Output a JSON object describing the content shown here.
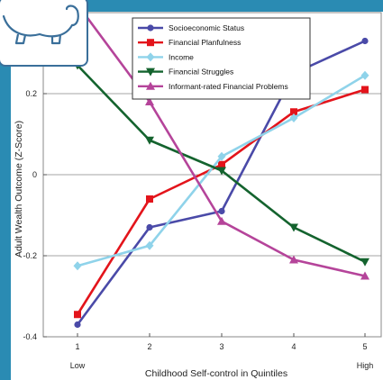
{
  "chart_data": {
    "type": "line",
    "xlabel": "Childhood Self-control in Quintiles",
    "ylabel": "Adult Wealth Outcome (Z-Score)",
    "x": [
      1,
      2,
      3,
      4,
      5
    ],
    "x_tick_labels": [
      "1",
      "2",
      "3",
      "4",
      "5"
    ],
    "x_end_labels": {
      "low": "Low",
      "high": "High"
    },
    "ylim": [
      -0.4,
      0.4
    ],
    "y_ticks": [
      -0.4,
      -0.2,
      0,
      0.2
    ],
    "y_tick_labels": [
      "-0.4",
      "-0.2",
      "0",
      "0.2"
    ],
    "grid": "horizontal",
    "legend_position": "top-right",
    "series": [
      {
        "name": "Socioeconomic Status",
        "color": "#4a4aa8",
        "marker": "circle",
        "values": [
          -0.37,
          -0.13,
          -0.09,
          0.25,
          0.33
        ]
      },
      {
        "name": "Financial Planfulness",
        "color": "#e3141b",
        "marker": "square",
        "values": [
          -0.345,
          -0.06,
          0.025,
          0.155,
          0.21
        ]
      },
      {
        "name": "Income",
        "color": "#8fd3ea",
        "marker": "diamond",
        "values": [
          -0.225,
          -0.175,
          0.045,
          0.14,
          0.245
        ]
      },
      {
        "name": "Financial Struggles",
        "color": "#14632e",
        "marker": "triangle-down",
        "values": [
          0.27,
          0.085,
          0.01,
          -0.13,
          -0.215
        ]
      },
      {
        "name": "Informant-rated Financial Problems",
        "color": "#b5449a",
        "marker": "triangle-up",
        "values": [
          0.42,
          0.18,
          -0.115,
          -0.21,
          -0.25
        ]
      }
    ]
  }
}
